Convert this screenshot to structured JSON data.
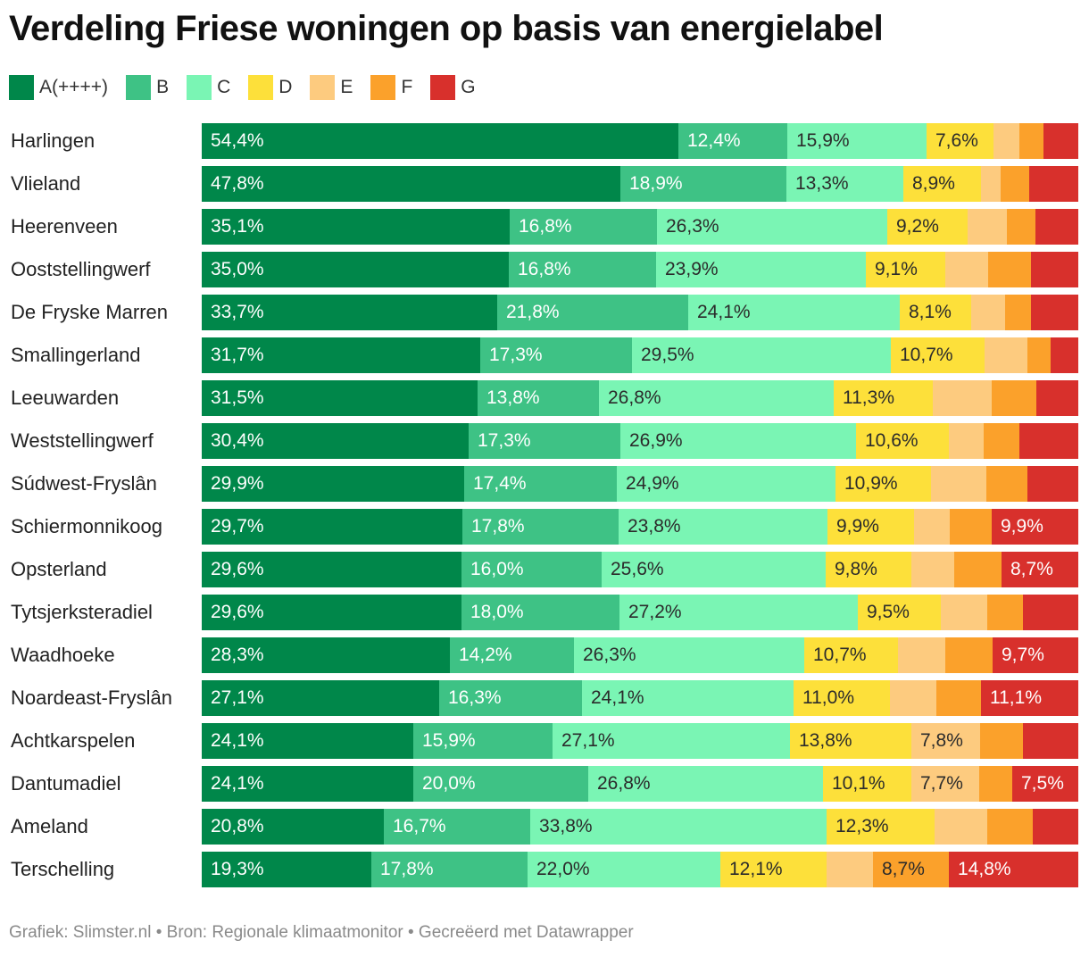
{
  "chart_data": {
    "type": "bar",
    "orientation": "horizontal-stacked-100",
    "title": "Verdeling Friese woningen op basis van energielabel",
    "footer": "Grafiek: Slimster.nl • Bron: Regionale klimaatmonitor • Gecreëerd met Datawrapper",
    "series_names": [
      "A(++++)",
      "B",
      "C",
      "D",
      "E",
      "F",
      "G"
    ],
    "colors": [
      "#00874a",
      "#3ec285",
      "#7af5b4",
      "#fde03a",
      "#fdcb7f",
      "#fba12b",
      "#d8302c"
    ],
    "label_colors": [
      "#ffffff",
      "#ffffff",
      "#2b2b2b",
      "#2b2b2b",
      "#2b2b2b",
      "#2b2b2b",
      "#ffffff"
    ],
    "categories": [
      "Harlingen",
      "Vlieland",
      "Heerenveen",
      "Ooststellingwerf",
      "De Fryske Marren",
      "Smallingerland",
      "Leeuwarden",
      "Weststellingwerf",
      "Súdwest-Fryslân",
      "Schiermonnikoog",
      "Opsterland",
      "Tytsjerksteradiel",
      "Waadhoeke",
      "Noardeast-Fryslân",
      "Achtkarspelen",
      "Dantumadiel",
      "Ameland",
      "Terschelling"
    ],
    "rows": [
      {
        "values": [
          54.4,
          12.4,
          15.9,
          7.6,
          3.0,
          2.7,
          4.0
        ],
        "labels": [
          "54,4%",
          "12,4%",
          "15,9%",
          "7,6%",
          "",
          "",
          ""
        ]
      },
      {
        "values": [
          47.8,
          18.9,
          13.3,
          8.9,
          2.2,
          3.3,
          5.6
        ],
        "labels": [
          "47,8%",
          "18,9%",
          "13,3%",
          "8,9%",
          "",
          "",
          ""
        ]
      },
      {
        "values": [
          35.1,
          16.8,
          26.3,
          9.2,
          4.5,
          3.3,
          4.8
        ],
        "labels": [
          "35,1%",
          "16,8%",
          "26,3%",
          "9,2%",
          "",
          "",
          ""
        ]
      },
      {
        "values": [
          35.0,
          16.8,
          23.9,
          9.1,
          4.9,
          4.9,
          5.4
        ],
        "labels": [
          "35,0%",
          "16,8%",
          "23,9%",
          "9,1%",
          "",
          "",
          ""
        ]
      },
      {
        "values": [
          33.7,
          21.8,
          24.1,
          8.1,
          3.9,
          3.0,
          5.4
        ],
        "labels": [
          "33,7%",
          "21,8%",
          "24,1%",
          "8,1%",
          "",
          "",
          ""
        ]
      },
      {
        "values": [
          31.7,
          17.3,
          29.5,
          10.7,
          4.9,
          2.6,
          3.1
        ],
        "labels": [
          "31,7%",
          "17,3%",
          "29,5%",
          "10,7%",
          "",
          "",
          ""
        ]
      },
      {
        "values": [
          31.5,
          13.8,
          26.8,
          11.3,
          6.7,
          5.1,
          4.8
        ],
        "labels": [
          "31,5%",
          "13,8%",
          "26,8%",
          "11,3%",
          "",
          "",
          ""
        ]
      },
      {
        "values": [
          30.4,
          17.3,
          26.9,
          10.6,
          4.0,
          4.1,
          6.7
        ],
        "labels": [
          "30,4%",
          "17,3%",
          "26,9%",
          "10,6%",
          "",
          "",
          ""
        ]
      },
      {
        "values": [
          29.9,
          17.4,
          24.9,
          10.9,
          6.3,
          4.7,
          5.9
        ],
        "labels": [
          "29,9%",
          "17,4%",
          "24,9%",
          "10,9%",
          "",
          "",
          ""
        ]
      },
      {
        "values": [
          29.7,
          17.8,
          23.8,
          9.9,
          4.1,
          4.8,
          9.9
        ],
        "labels": [
          "29,7%",
          "17,8%",
          "23,8%",
          "9,9%",
          "",
          "",
          "9,9%"
        ]
      },
      {
        "values": [
          29.6,
          16.0,
          25.6,
          9.8,
          4.9,
          5.4,
          8.7
        ],
        "labels": [
          "29,6%",
          "16,0%",
          "25,6%",
          "9,8%",
          "",
          "",
          "8,7%"
        ]
      },
      {
        "values": [
          29.6,
          18.0,
          27.2,
          9.5,
          5.3,
          4.1,
          6.3
        ],
        "labels": [
          "29,6%",
          "18,0%",
          "27,2%",
          "9,5%",
          "",
          "",
          ""
        ]
      },
      {
        "values": [
          28.3,
          14.2,
          26.3,
          10.7,
          5.4,
          5.4,
          9.7
        ],
        "labels": [
          "28,3%",
          "14,2%",
          "26,3%",
          "10,7%",
          "",
          "",
          "9,7%"
        ]
      },
      {
        "values": [
          27.1,
          16.3,
          24.1,
          11.0,
          5.3,
          5.1,
          11.1
        ],
        "labels": [
          "27,1%",
          "16,3%",
          "24,1%",
          "11,0%",
          "",
          "",
          "11,1%"
        ]
      },
      {
        "values": [
          24.1,
          15.9,
          27.1,
          13.8,
          7.8,
          4.9,
          6.4
        ],
        "labels": [
          "24,1%",
          "15,9%",
          "27,1%",
          "13,8%",
          "7,8%",
          "",
          ""
        ]
      },
      {
        "values": [
          24.1,
          20.0,
          26.8,
          10.1,
          7.7,
          3.8,
          7.5
        ],
        "labels": [
          "24,1%",
          "20,0%",
          "26,8%",
          "10,1%",
          "7,7%",
          "",
          "7,5%"
        ]
      },
      {
        "values": [
          20.8,
          16.7,
          33.8,
          12.3,
          6.0,
          5.2,
          5.2
        ],
        "labels": [
          "20,8%",
          "16,7%",
          "33,8%",
          "12,3%",
          "",
          "",
          ""
        ]
      },
      {
        "values": [
          19.3,
          17.8,
          22.0,
          12.1,
          5.3,
          8.7,
          14.8
        ],
        "labels": [
          "19,3%",
          "17,8%",
          "22,0%",
          "12,1%",
          "",
          "8,7%",
          "14,8%"
        ]
      }
    ]
  }
}
